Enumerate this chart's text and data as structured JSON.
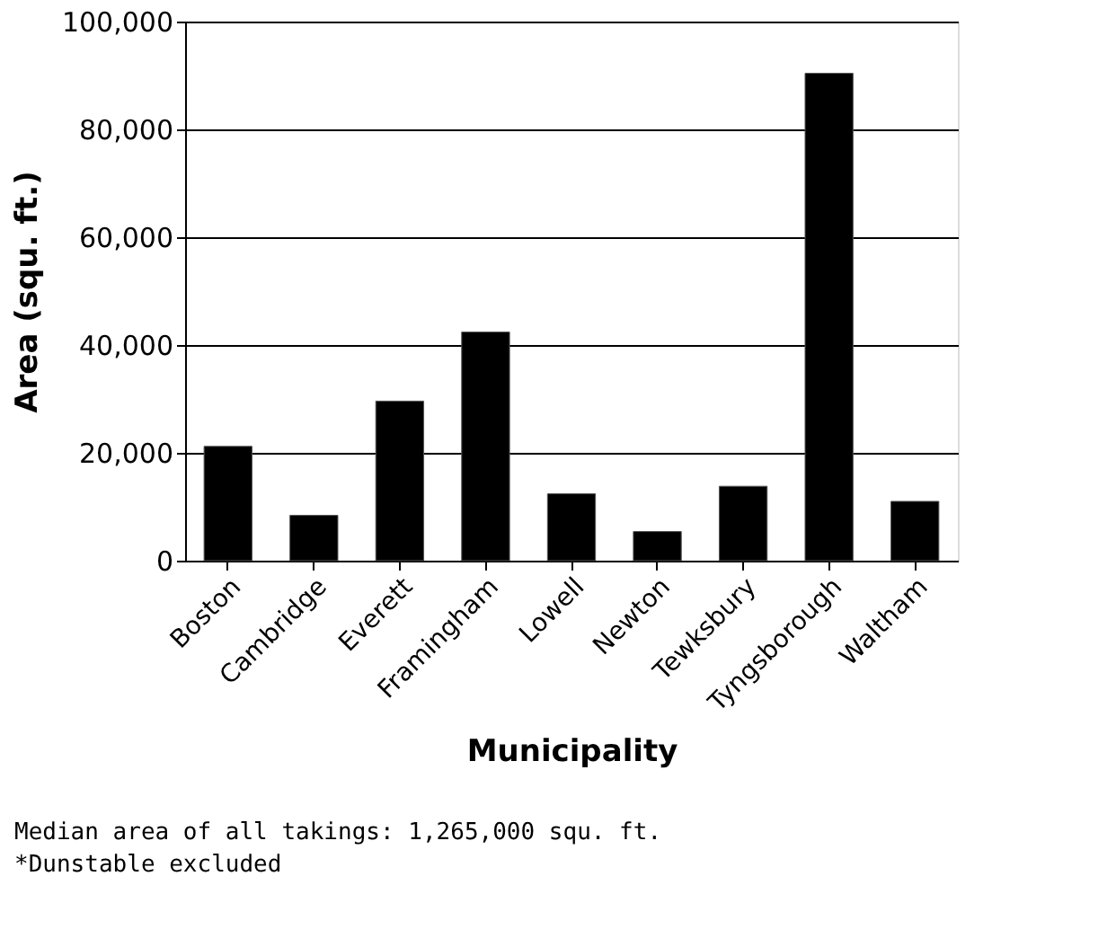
{
  "chart_data": {
    "type": "bar",
    "xlabel": "Municipality",
    "ylabel": "Area (squ. ft.)",
    "categories": [
      "Boston",
      "Cambridge",
      "Everett",
      "Framingham",
      "Lowell",
      "Newton",
      "Tewksbury",
      "Tyngsborough",
      "Waltham"
    ],
    "values": [
      21200,
      8400,
      29600,
      42400,
      12400,
      5400,
      13800,
      90400,
      11000
    ],
    "color": "#000000",
    "ylim": [
      0,
      100000
    ],
    "yticks": [
      0,
      {
        "value": 20000,
        "label": "20,000"
      },
      {
        "value": 40000,
        "label": "40,000"
      },
      {
        "value": 60000,
        "label": "60,000"
      },
      {
        "value": 80000,
        "label": "80,000"
      },
      {
        "value": 100000,
        "label": "100,000"
      }
    ],
    "grid": "y",
    "annotations": [
      "Median area of all takings: 1,265,000 squ. ft.",
      "*Dunstable excluded"
    ]
  }
}
